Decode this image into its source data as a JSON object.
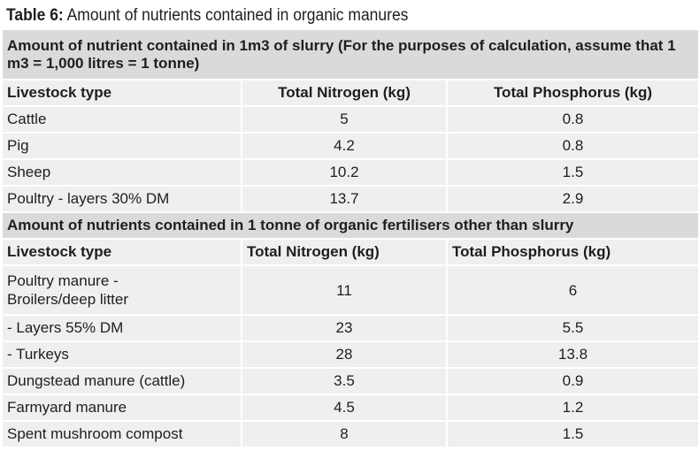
{
  "caption": {
    "prefix": "Table 6:",
    "text": " Amount of nutrients contained in organic manures"
  },
  "section1": {
    "title": "Amount of nutrient contained in 1m3 of slurry (For the purposes of calculation, assume that 1 m3 = 1,000 litres = 1 tonne)",
    "headers": [
      "Livestock type",
      "Total Nitrogen (kg)",
      "Total Phosphorus (kg)"
    ],
    "rows": [
      [
        "Cattle",
        "5",
        "0.8"
      ],
      [
        "Pig",
        "4.2",
        "0.8"
      ],
      [
        "Sheep",
        "10.2",
        "1.5"
      ],
      [
        "Poultry - layers 30% DM",
        "13.7",
        "2.9"
      ]
    ]
  },
  "section2": {
    "title": "Amount of nutrients contained in 1 tonne of organic fertilisers other than slurry",
    "headers": [
      "Livestock type",
      "Total Nitrogen (kg)",
      "Total Phosphorus (kg)"
    ],
    "rows": [
      [
        "Poultry manure - Broilers/deep litter",
        "11",
        "6"
      ],
      [
        "- Layers 55% DM",
        "23",
        "5.5"
      ],
      [
        "- Turkeys",
        "28",
        "13.8"
      ],
      [
        "Dungstead manure (cattle)",
        "3.5",
        "0.9"
      ],
      [
        "Farmyard manure",
        "4.5",
        "1.2"
      ],
      [
        "Spent mushroom compost",
        "8",
        "1.5"
      ]
    ]
  }
}
